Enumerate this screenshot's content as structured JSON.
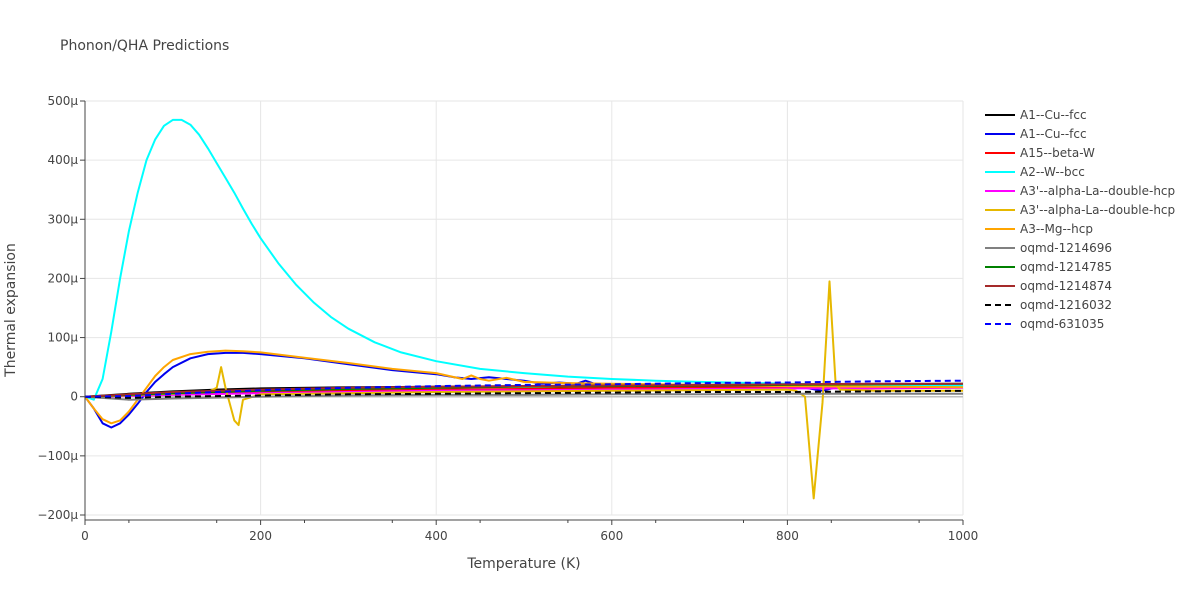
{
  "chart_data": {
    "type": "line",
    "title": "Phonon/QHA Predictions",
    "xlabel": "Temperature (K)",
    "ylabel": "Thermal expansion",
    "xlim": [
      0,
      1000
    ],
    "ylim": [
      -200,
      500
    ],
    "x_ticks": [
      0,
      200,
      400,
      600,
      800,
      1000
    ],
    "x_tick_labels": [
      "0",
      "200",
      "400",
      "600",
      "800",
      "1000"
    ],
    "y_ticks": [
      -200,
      -100,
      0,
      100,
      200,
      300,
      400,
      500
    ],
    "y_tick_labels": [
      "−200μ",
      "−100μ",
      "0",
      "100μ",
      "200μ",
      "300μ",
      "400μ",
      "500μ"
    ],
    "y_unit": "μ (×1e-6)",
    "grid": true,
    "legend_position": "right",
    "series": [
      {
        "name": "A1--Cu--fcc",
        "color": "#000000",
        "dash": false,
        "x": [
          0,
          50,
          100,
          150,
          200,
          300,
          400,
          500,
          600,
          700,
          800,
          900,
          1000
        ],
        "y": [
          0,
          5,
          9,
          12,
          14,
          16,
          17,
          18,
          19,
          19,
          20,
          20,
          20
        ]
      },
      {
        "name": "A1--Cu--fcc",
        "color": "#0000ee",
        "dash": false,
        "x": [
          0,
          10,
          20,
          30,
          40,
          50,
          60,
          70,
          80,
          90,
          100,
          120,
          140,
          160,
          180,
          200,
          250,
          300,
          350,
          400,
          420,
          440,
          460,
          480,
          500,
          520,
          540,
          560,
          570,
          580,
          600,
          700,
          800,
          820,
          840,
          860,
          900,
          1000
        ],
        "y": [
          0,
          -20,
          -45,
          -52,
          -45,
          -30,
          -12,
          8,
          25,
          38,
          50,
          65,
          72,
          74,
          74,
          72,
          65,
          55,
          45,
          38,
          33,
          30,
          33,
          30,
          27,
          22,
          24,
          22,
          27,
          22,
          20,
          20,
          18,
          15,
          10,
          18,
          20,
          20
        ]
      },
      {
        "name": "A15--beta-W",
        "color": "#ff0000",
        "dash": false,
        "x": [
          0,
          50,
          100,
          200,
          300,
          400,
          500,
          600,
          700,
          800,
          900,
          1000
        ],
        "y": [
          0,
          2,
          4,
          7,
          10,
          12,
          13,
          15,
          16,
          17,
          18,
          19
        ]
      },
      {
        "name": "A2--W--bcc",
        "color": "#00ffff",
        "dash": false,
        "x": [
          0,
          10,
          20,
          30,
          40,
          50,
          60,
          70,
          80,
          90,
          100,
          110,
          120,
          130,
          140,
          150,
          160,
          170,
          180,
          190,
          200,
          220,
          240,
          260,
          280,
          300,
          330,
          360,
          400,
          450,
          500,
          550,
          600,
          650,
          700,
          800,
          900,
          1000
        ],
        "y": [
          0,
          -5,
          30,
          110,
          200,
          280,
          345,
          400,
          435,
          458,
          468,
          468,
          460,
          443,
          420,
          395,
          370,
          345,
          318,
          292,
          268,
          226,
          190,
          160,
          135,
          115,
          92,
          75,
          60,
          47,
          40,
          34,
          30,
          27,
          25,
          22,
          20,
          19
        ]
      },
      {
        "name": "A3'--alpha-La--double-hcp",
        "color": "#ff00ff",
        "dash": false,
        "x": [
          0,
          50,
          100,
          200,
          300,
          400,
          500,
          600,
          700,
          800,
          900,
          1000
        ],
        "y": [
          0,
          1,
          3,
          6,
          8,
          10,
          11,
          12,
          13,
          14,
          14,
          15
        ]
      },
      {
        "name": "A3'--alpha-La--double-hcp",
        "color": "#e6b800",
        "dash": false,
        "x": [
          0,
          50,
          60,
          100,
          140,
          150,
          155,
          160,
          170,
          175,
          180,
          200,
          400,
          600,
          800,
          810,
          820,
          830,
          840,
          848,
          855,
          860,
          900,
          1000
        ],
        "y": [
          0,
          2,
          3,
          5,
          8,
          15,
          50,
          15,
          -40,
          -48,
          -5,
          4,
          8,
          10,
          12,
          10,
          0,
          -172,
          -10,
          195,
          20,
          12,
          10,
          10
        ]
      },
      {
        "name": "A3--Mg--hcp",
        "color": "#ffa500",
        "dash": false,
        "x": [
          0,
          10,
          20,
          30,
          40,
          50,
          60,
          70,
          80,
          90,
          100,
          120,
          140,
          160,
          180,
          200,
          250,
          300,
          350,
          400,
          430,
          440,
          450,
          460,
          480,
          500,
          550,
          600,
          700,
          800,
          900,
          1000
        ],
        "y": [
          0,
          -20,
          -38,
          -45,
          -40,
          -25,
          -5,
          15,
          35,
          50,
          62,
          72,
          76,
          78,
          77,
          75,
          66,
          57,
          47,
          40,
          30,
          36,
          30,
          27,
          32,
          25,
          23,
          22,
          20,
          18,
          17,
          16
        ]
      },
      {
        "name": "oqmd-1214696",
        "color": "#808080",
        "dash": false,
        "x": [
          0,
          50,
          100,
          200,
          300,
          400,
          500,
          600,
          700,
          800,
          900,
          1000
        ],
        "y": [
          0,
          -5,
          -3,
          0,
          2,
          3,
          3,
          4,
          4,
          5,
          5,
          5
        ]
      },
      {
        "name": "oqmd-1214785",
        "color": "#008000",
        "dash": false,
        "x": [
          0,
          50,
          100,
          200,
          300,
          400,
          500,
          600,
          700,
          800,
          900,
          1000
        ],
        "y": [
          0,
          3,
          6,
          10,
          13,
          15,
          17,
          18,
          19,
          20,
          21,
          22
        ]
      },
      {
        "name": "oqmd-1214874",
        "color": "#a52a2a",
        "dash": false,
        "x": [
          0,
          50,
          100,
          200,
          300,
          400,
          500,
          600,
          700,
          800,
          900,
          1000
        ],
        "y": [
          0,
          4,
          8,
          12,
          15,
          17,
          18,
          19,
          20,
          21,
          22,
          22
        ]
      },
      {
        "name": "oqmd-1216032",
        "color": "#000000",
        "dash": true,
        "x": [
          0,
          50,
          100,
          200,
          300,
          400,
          500,
          600,
          700,
          800,
          900,
          1000
        ],
        "y": [
          0,
          -2,
          0,
          2,
          4,
          5,
          6,
          7,
          8,
          8,
          9,
          10
        ]
      },
      {
        "name": "oqmd-631035",
        "color": "#0000ff",
        "dash": true,
        "x": [
          0,
          50,
          100,
          200,
          300,
          400,
          500,
          600,
          700,
          800,
          900,
          1000
        ],
        "y": [
          0,
          1,
          5,
          11,
          15,
          18,
          20,
          21,
          23,
          24,
          26,
          27
        ]
      }
    ]
  }
}
